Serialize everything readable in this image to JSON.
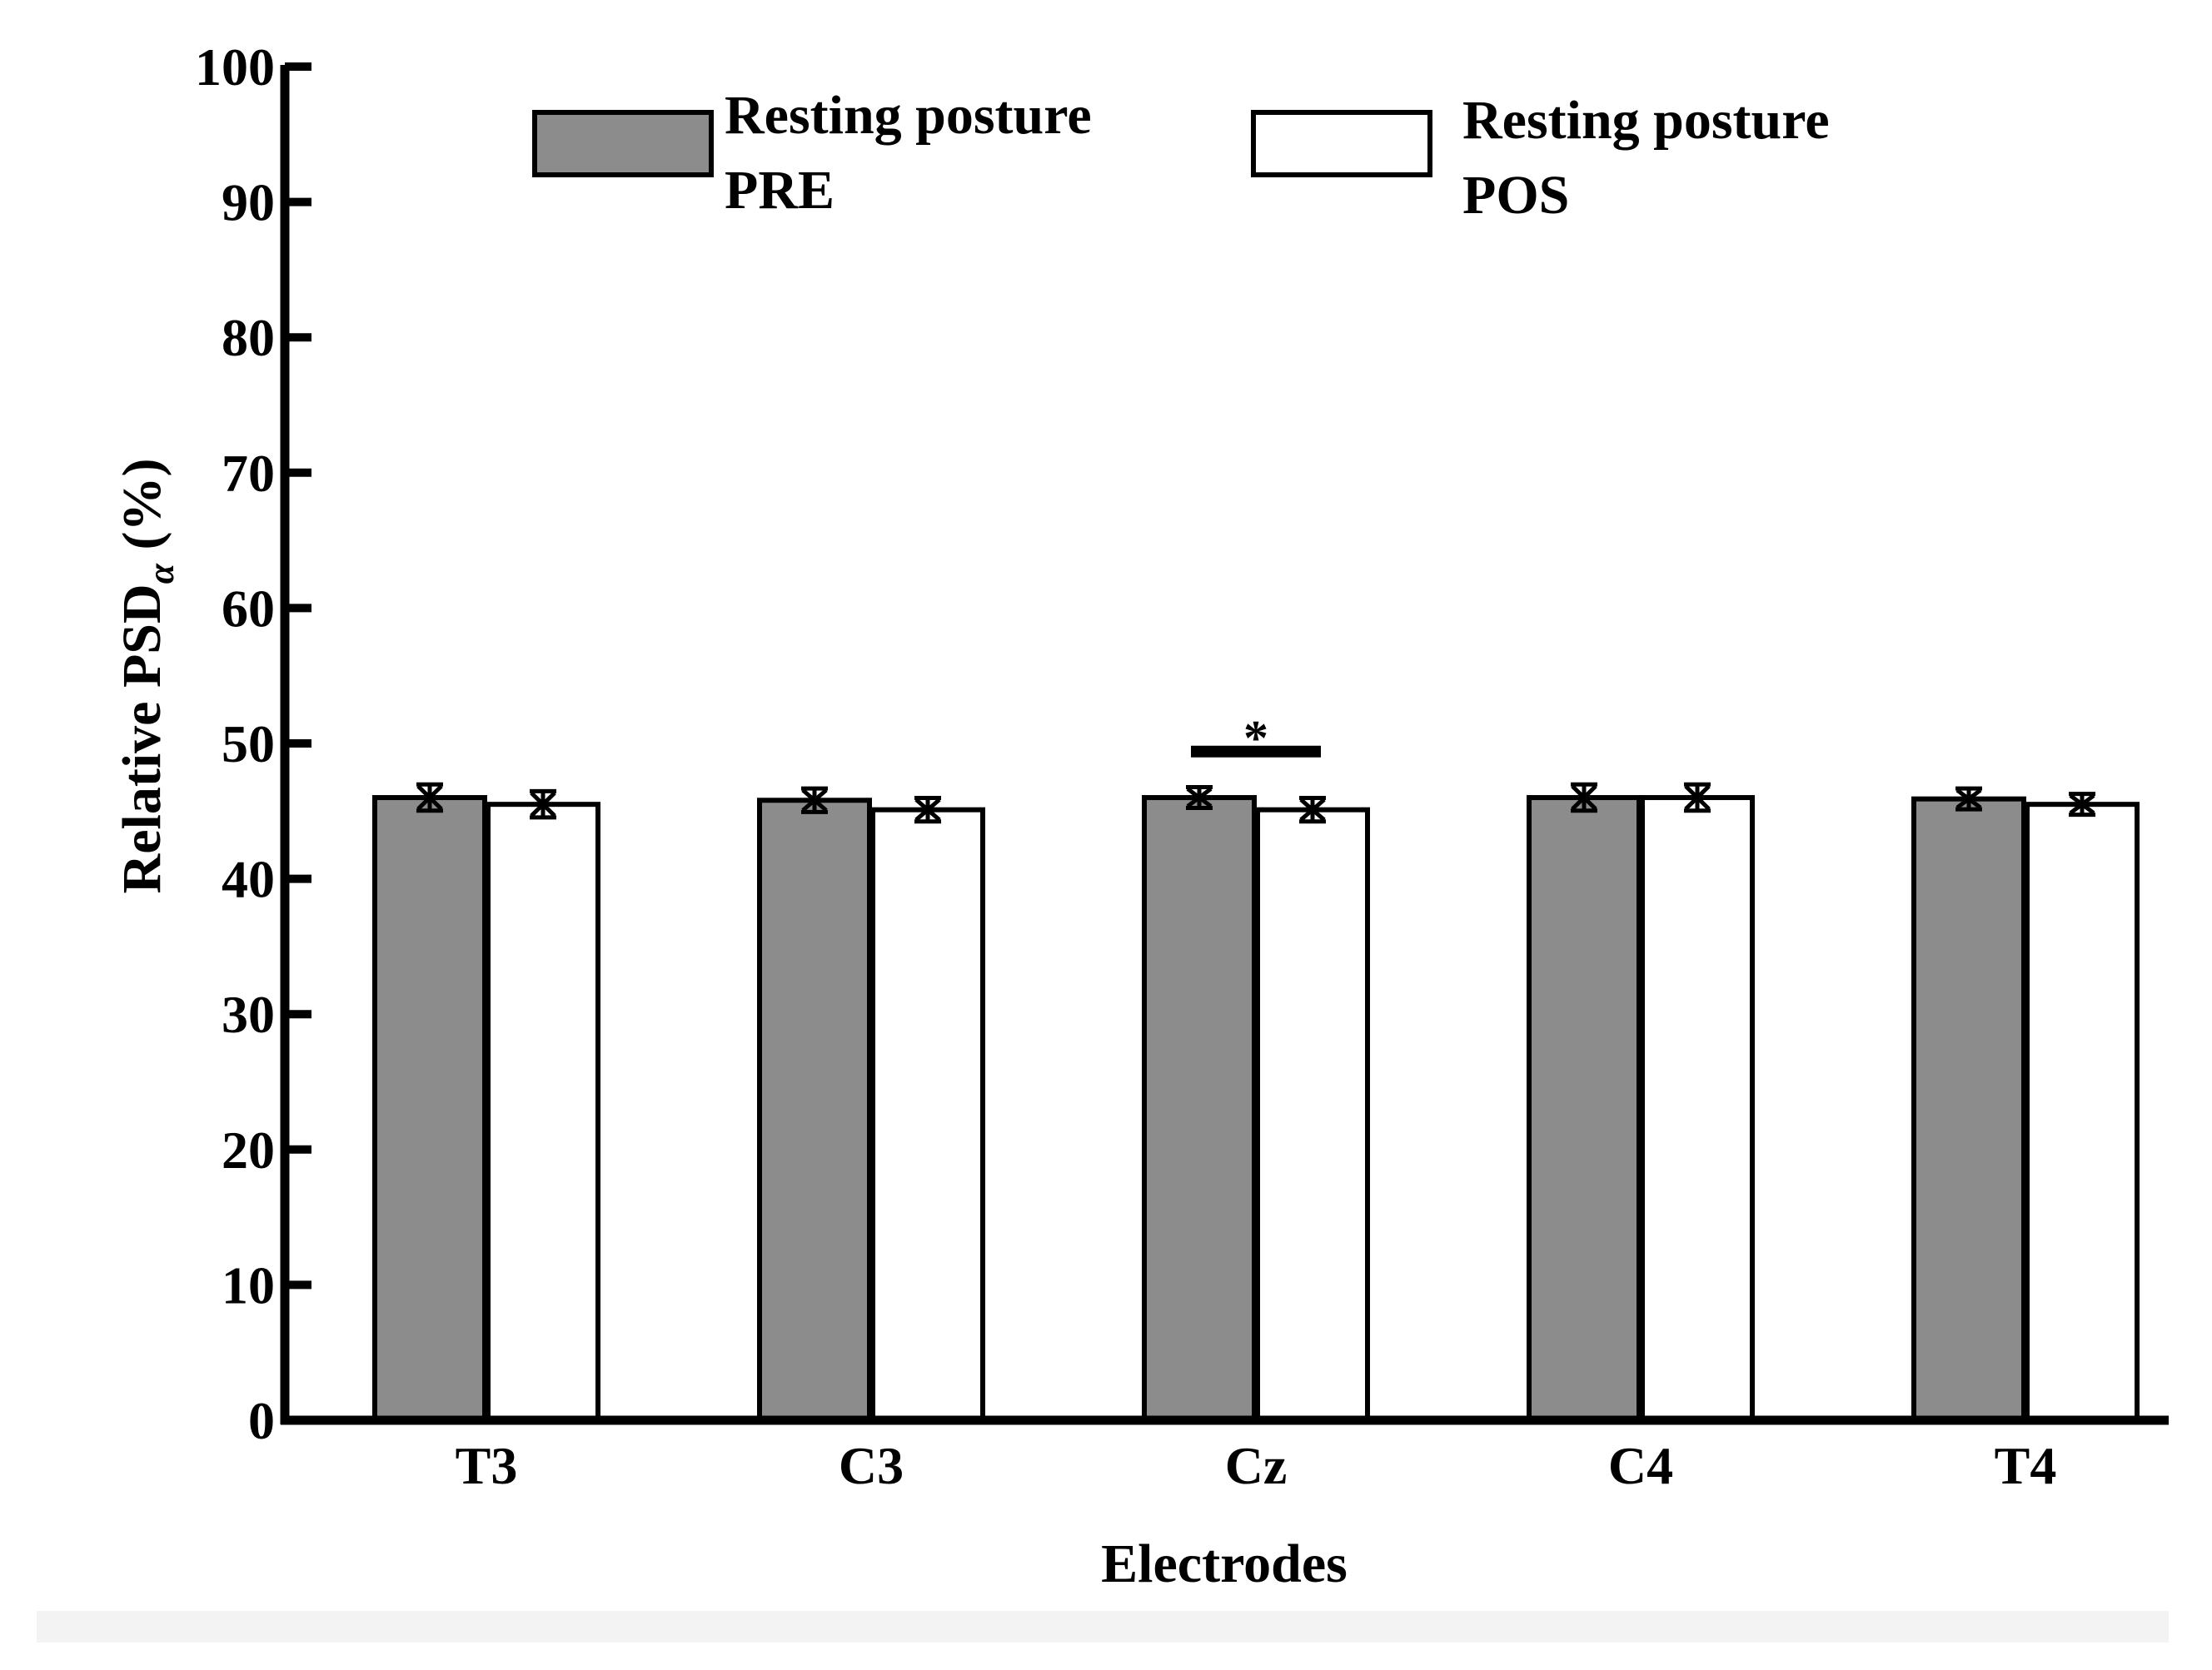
{
  "chart_data": {
    "type": "bar",
    "title": "",
    "xlabel": "Electrodes",
    "ylabel": {
      "main": "Relative PSD",
      "subscript": "α",
      "suffix": " (%)"
    },
    "ylim": [
      0,
      100
    ],
    "yticks": [
      0,
      10,
      20,
      30,
      40,
      50,
      60,
      70,
      80,
      90,
      100
    ],
    "categories": [
      "T3",
      "C3",
      "Cz",
      "C4",
      "T4"
    ],
    "series": [
      {
        "name": "Resting posture PRE",
        "legend_lines": [
          "Resting posture",
          "PRE"
        ],
        "color": "#8c8c8c",
        "values": [
          46.0,
          45.8,
          46.0,
          46.0,
          45.9
        ],
        "errors": [
          0.6,
          0.5,
          0.4,
          0.6,
          0.4
        ]
      },
      {
        "name": "Resting posture POS",
        "legend_lines": [
          "Resting posture",
          "POS"
        ],
        "color": "#ffffff",
        "values": [
          45.5,
          45.1,
          45.1,
          46.0,
          45.5
        ],
        "errors": [
          0.6,
          0.5,
          0.5,
          0.6,
          0.4
        ]
      }
    ],
    "annotations": [
      {
        "label": "*",
        "category": "Cz",
        "bracket_y": 49.4,
        "text_y": 51.0
      }
    ],
    "legend": "top"
  }
}
